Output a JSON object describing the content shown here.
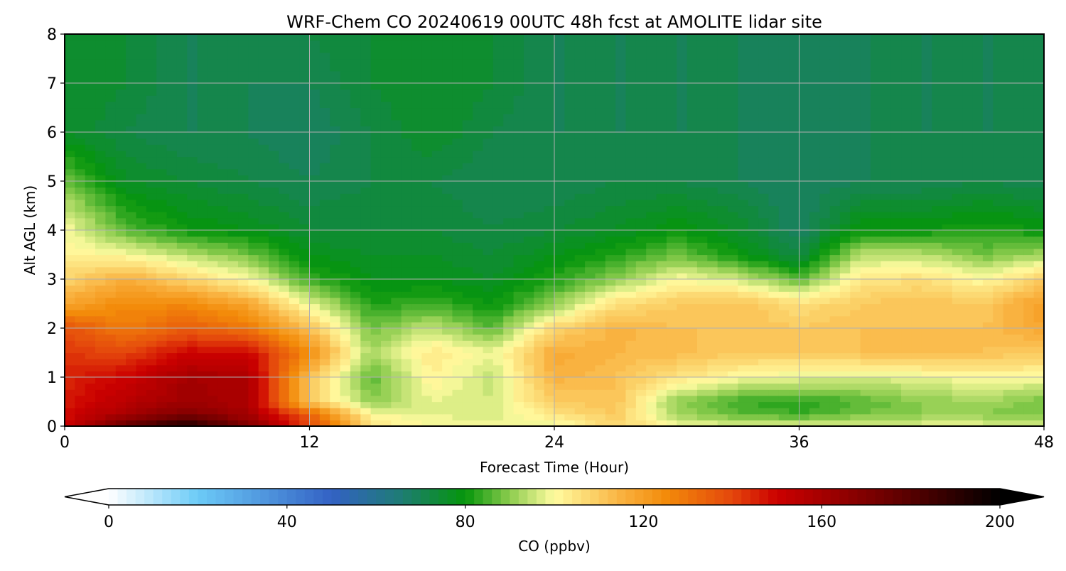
{
  "chart_data": {
    "type": "heatmap",
    "subtype": "filled-contour time-height cross section",
    "title": "WRF-Chem CO  20240619 00UTC 48h fcst at AMOLITE lidar site",
    "xlabel": "Forecast Time (Hour)",
    "ylabel": "Alt AGL (km)",
    "xlim": [
      0,
      48
    ],
    "ylim": [
      0,
      8
    ],
    "xticks": [
      "0",
      "12",
      "24",
      "36",
      "48"
    ],
    "yticks": [
      "0",
      "1",
      "2",
      "3",
      "4",
      "5",
      "6",
      "7",
      "8"
    ],
    "grid": true,
    "x": [
      0,
      3,
      6,
      9,
      12,
      15,
      18,
      21,
      24,
      27,
      30,
      33,
      36,
      39,
      42,
      45,
      48
    ],
    "y": [
      0,
      0.25,
      0.5,
      1,
      1.5,
      2,
      2.5,
      3,
      3.5,
      4,
      5,
      6,
      7,
      8
    ],
    "z": [
      [
        150,
        178,
        195,
        170,
        140,
        105,
        100,
        100,
        98,
        108,
        100,
        98,
        98,
        98,
        98,
        98,
        98
      ],
      [
        148,
        160,
        170,
        160,
        135,
        100,
        98,
        96,
        105,
        110,
        92,
        86,
        84,
        88,
        90,
        90,
        88
      ],
      [
        146,
        155,
        162,
        158,
        110,
        90,
        98,
        96,
        110,
        112,
        90,
        84,
        82,
        86,
        90,
        92,
        88
      ],
      [
        145,
        150,
        160,
        158,
        112,
        86,
        102,
        95,
        115,
        112,
        105,
        100,
        98,
        96,
        98,
        100,
        100
      ],
      [
        142,
        140,
        150,
        150,
        125,
        92,
        104,
        98,
        117,
        114,
        113,
        110,
        110,
        112,
        114,
        112,
        110
      ],
      [
        138,
        128,
        135,
        130,
        112,
        88,
        95,
        86,
        108,
        115,
        112,
        112,
        110,
        112,
        112,
        112,
        118
      ],
      [
        118,
        125,
        125,
        118,
        98,
        82,
        84,
        80,
        90,
        106,
        110,
        112,
        106,
        110,
        112,
        110,
        120
      ],
      [
        108,
        116,
        108,
        100,
        84,
        78,
        78,
        76,
        82,
        90,
        100,
        96,
        86,
        104,
        106,
        100,
        110
      ],
      [
        102,
        100,
        94,
        88,
        78,
        76,
        76,
        74,
        78,
        82,
        88,
        80,
        72,
        94,
        94,
        88,
        92
      ],
      [
        100,
        86,
        80,
        78,
        74,
        74,
        74,
        72,
        74,
        76,
        80,
        76,
        68,
        80,
        80,
        82,
        80
      ],
      [
        88,
        76,
        74,
        72,
        70,
        72,
        72,
        70,
        70,
        72,
        72,
        70,
        68,
        70,
        70,
        72,
        70
      ],
      [
        76,
        72,
        70,
        70,
        68,
        72,
        76,
        72,
        70,
        70,
        70,
        70,
        68,
        70,
        70,
        70,
        70
      ],
      [
        76,
        74,
        70,
        70,
        70,
        74,
        76,
        74,
        70,
        70,
        70,
        70,
        68,
        70,
        70,
        70,
        70
      ],
      [
        76,
        74,
        70,
        70,
        72,
        74,
        76,
        74,
        70,
        70,
        70,
        70,
        68,
        70,
        70,
        70,
        70
      ]
    ],
    "colorbar": {
      "label": "CO  (ppbv)",
      "vmin": 0,
      "vmax": 200,
      "ticks": [
        "0",
        "40",
        "80",
        "120",
        "160",
        "200"
      ],
      "extend": "both",
      "orientation": "horizontal",
      "stops": [
        {
          "v": 0,
          "c": "#ffffff"
        },
        {
          "v": 20,
          "c": "#6ccbf7"
        },
        {
          "v": 50,
          "c": "#3361c4"
        },
        {
          "v": 65,
          "c": "#1f7b78"
        },
        {
          "v": 80,
          "c": "#05960b"
        },
        {
          "v": 90,
          "c": "#8ccc4e"
        },
        {
          "v": 100,
          "c": "#fffca0"
        },
        {
          "v": 115,
          "c": "#f9b240"
        },
        {
          "v": 125,
          "c": "#f38b0a"
        },
        {
          "v": 140,
          "c": "#e4460c"
        },
        {
          "v": 150,
          "c": "#cc0000"
        },
        {
          "v": 175,
          "c": "#6b0000"
        },
        {
          "v": 200,
          "c": "#000000"
        }
      ]
    }
  }
}
